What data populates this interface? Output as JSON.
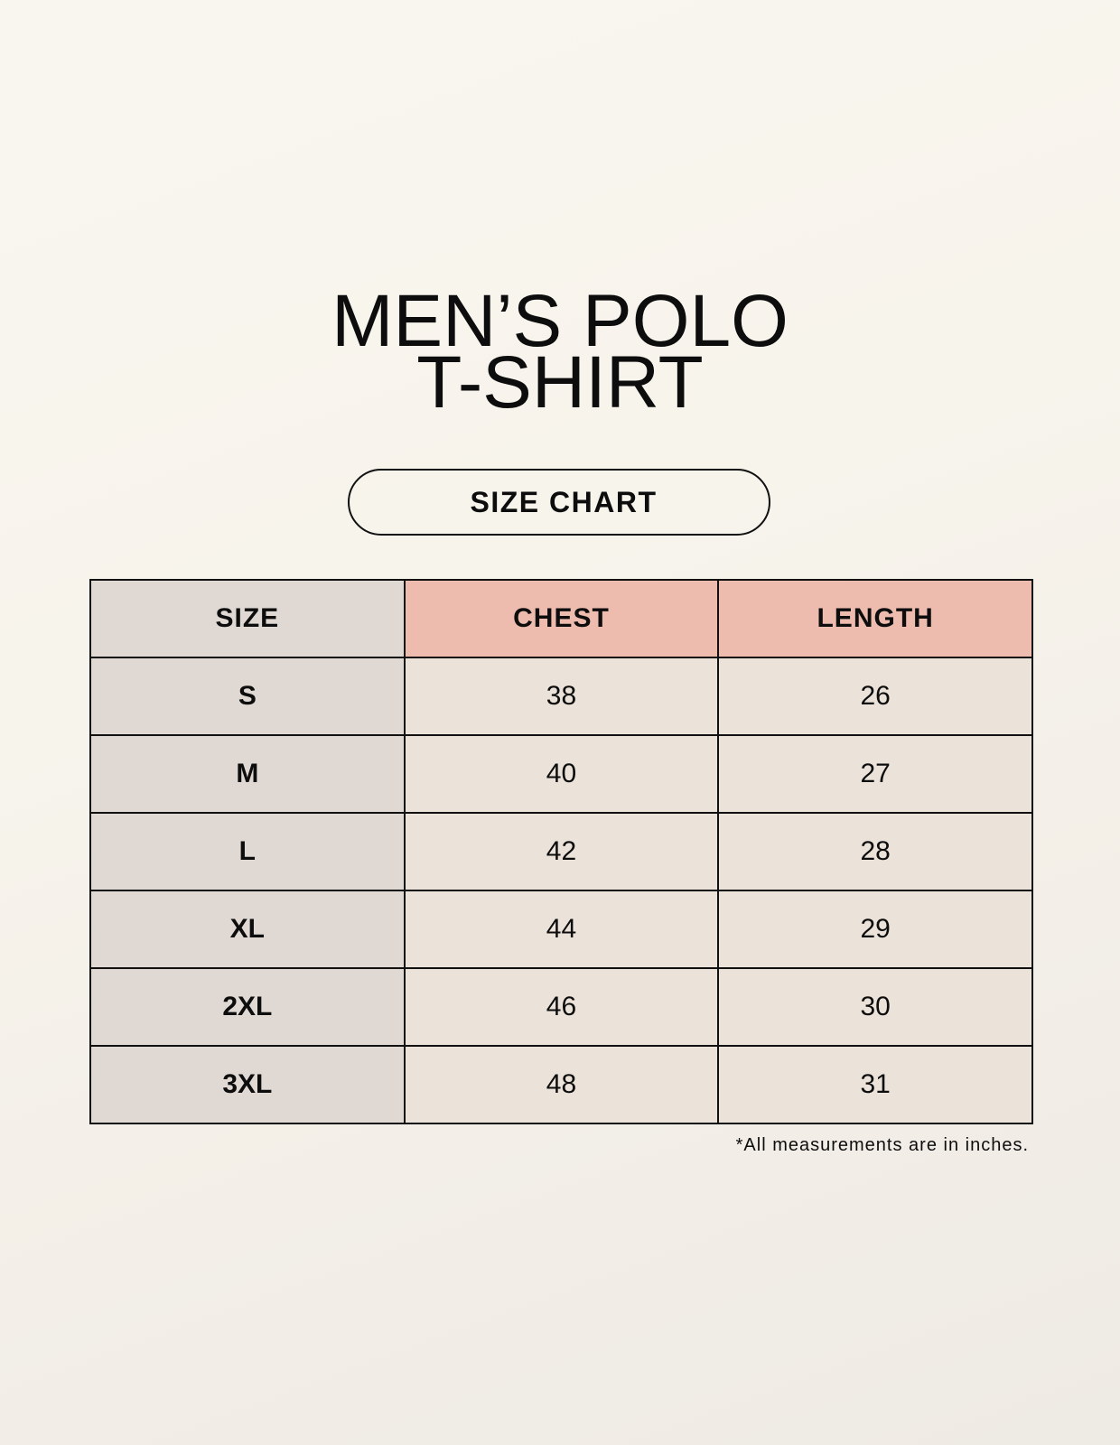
{
  "title": {
    "line1": "MEN’S POLO",
    "line2": "T-SHIRT"
  },
  "badge": "SIZE CHART",
  "table": {
    "headers": [
      "SIZE",
      "CHEST",
      "LENGTH"
    ],
    "rows": [
      [
        "S",
        "38",
        "26"
      ],
      [
        "M",
        "40",
        "27"
      ],
      [
        "L",
        "42",
        "28"
      ],
      [
        "XL",
        "44",
        "29"
      ],
      [
        "2XL",
        "46",
        "30"
      ],
      [
        "3XL",
        "48",
        "31"
      ]
    ]
  },
  "footnote": "*All measurements are in inches.",
  "colors": {
    "size_column": "#e0d8d3",
    "header_accent": "#edbcae",
    "cell": "#ebe3d9"
  }
}
